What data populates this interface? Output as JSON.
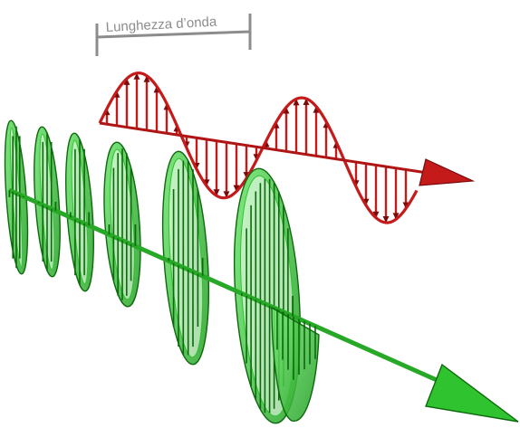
{
  "wavelength_label": "Lunghezza d’onda",
  "colors": {
    "magnetic_wave": "#c41a1a",
    "magnetic_wave_dark": "#7a0a0a",
    "electric_wave": "#2fc42f",
    "electric_wave_dark": "#0c6a0c",
    "bracket": "#8c8c8c",
    "label": "#8c8c8c"
  }
}
